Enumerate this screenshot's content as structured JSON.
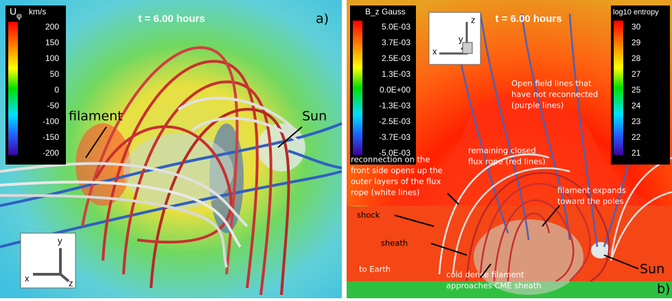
{
  "panel_a": {
    "colorbar": {
      "title": "U",
      "title_sub": "φ",
      "unit": "km/s",
      "labels": [
        "200",
        "150",
        "100",
        "50",
        "0",
        "-50",
        "-100",
        "-150",
        "-200"
      ]
    },
    "time": "t = 6.00 hours",
    "panel_label": "a)",
    "annotations": [
      "filament",
      "Sun"
    ],
    "axes": [
      "y",
      "x",
      "z"
    ]
  },
  "panel_b": {
    "colorbar_left": {
      "title": "B_z Gauss",
      "labels": [
        "5.0E-03",
        "3.7E-03",
        "2.5E-03",
        "1.3E-03",
        "0.0E+00",
        "-1.3E-03",
        "-2.5E-03",
        "-3.7E-03",
        "-5.0E-03"
      ]
    },
    "colorbar_right": {
      "title": "log10 entropy",
      "labels": [
        "30",
        "29",
        "28",
        "27",
        "25",
        "24",
        "23",
        "22",
        "21"
      ]
    },
    "time": "t = 6.00 hours",
    "panel_label": "b)",
    "axes": [
      "z",
      "y",
      "x"
    ],
    "annotations": {
      "open_lines": [
        "Open field lines that",
        "have not reconnected",
        "(purple lines)"
      ],
      "closed_rope": [
        "remaining closed",
        "flux rope (red lines)"
      ],
      "reconnection": [
        "reconnection on the",
        "front side opens up the",
        "outer layers of the flux",
        "rope (white lines)"
      ],
      "filament": [
        "filament expands",
        "toward the poles"
      ],
      "shock": "shock",
      "sheath": "sheath",
      "earth": "to Earth",
      "cold": [
        "cold dense filament",
        "approaches CME sheath"
      ],
      "sun": "Sun"
    }
  }
}
